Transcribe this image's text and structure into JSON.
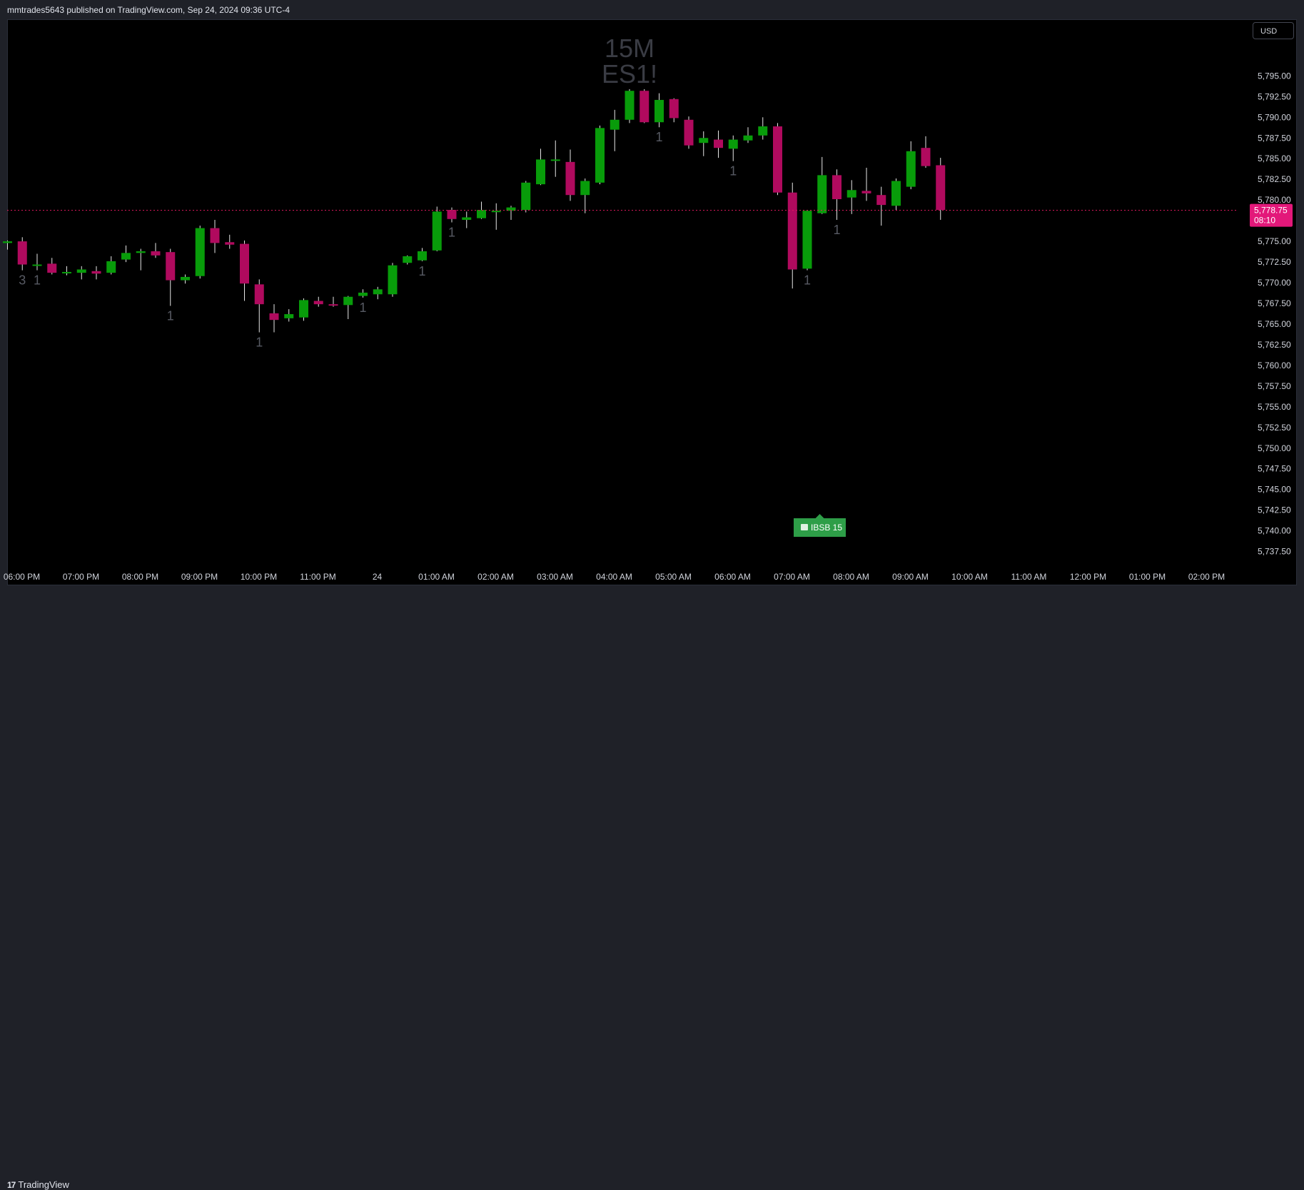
{
  "header": {
    "publisher": "mmtrades5643 published on TradingView.com, Sep 24, 2024 09:36 UTC-4"
  },
  "currency_button": "USD",
  "footer": {
    "brand": "TradingView",
    "brand_logo": "17"
  },
  "watermark": {
    "line1": "15M",
    "line2": "ES1!"
  },
  "colors": {
    "background": "#000000",
    "up": "#089c0a",
    "down": "#b00a5e",
    "wick": "#e6e6e6",
    "price_line": "#e3185f",
    "price_tag": "#e3187a",
    "count_label": "#575a63",
    "ibsb_badge": "#2e9e48"
  },
  "current_price": {
    "price": "5,778.75",
    "countdown": "08:10"
  },
  "ibsb_label": "IBSB 15",
  "chart_data": {
    "type": "candlestick",
    "symbol": "ES1!",
    "interval": "15M",
    "ylim": [
      5736.0,
      5799.0
    ],
    "y_ticks": [
      "5,795.00",
      "5,792.50",
      "5,790.00",
      "5,787.50",
      "5,785.00",
      "5,782.50",
      "5,780.00",
      "5,777.50",
      "5,775.00",
      "5,772.50",
      "5,770.00",
      "5,767.50",
      "5,765.00",
      "5,762.50",
      "5,760.00",
      "5,757.50",
      "5,755.00",
      "5,752.50",
      "5,750.00",
      "5,747.50",
      "5,745.00",
      "5,742.50",
      "5,740.00",
      "5,737.50"
    ],
    "x_ticks": [
      "06:00 PM",
      "07:00 PM",
      "08:00 PM",
      "09:00 PM",
      "10:00 PM",
      "11:00 PM",
      "24",
      "01:00 AM",
      "02:00 AM",
      "03:00 AM",
      "04:00 AM",
      "05:00 AM",
      "06:00 AM",
      "07:00 AM",
      "08:00 AM",
      "09:00 AM",
      "10:00 AM",
      "11:00 AM",
      "12:00 PM",
      "01:00 PM",
      "02:00 PM"
    ],
    "current_price": 5778.75,
    "candles": [
      {
        "t": "18:00",
        "o": 5774.8,
        "h": 5775.1,
        "l": 5774.0,
        "c": 5775.0
      },
      {
        "t": "18:15",
        "o": 5775.0,
        "h": 5775.5,
        "l": 5771.5,
        "c": 5772.2
      },
      {
        "t": "18:30",
        "o": 5772.2,
        "h": 5773.5,
        "l": 5771.5,
        "c": 5772.2
      },
      {
        "t": "18:45",
        "o": 5772.3,
        "h": 5773.0,
        "l": 5771.0,
        "c": 5771.2
      },
      {
        "t": "19:00",
        "o": 5771.2,
        "h": 5772.0,
        "l": 5770.9,
        "c": 5771.3
      },
      {
        "t": "19:15",
        "o": 5771.2,
        "h": 5772.0,
        "l": 5770.4,
        "c": 5771.6
      },
      {
        "t": "19:30",
        "o": 5771.4,
        "h": 5772.0,
        "l": 5770.4,
        "c": 5771.1
      },
      {
        "t": "19:45",
        "o": 5771.2,
        "h": 5773.2,
        "l": 5771.0,
        "c": 5772.6
      },
      {
        "t": "20:00",
        "o": 5772.8,
        "h": 5774.5,
        "l": 5772.5,
        "c": 5773.6
      },
      {
        "t": "20:15",
        "o": 5773.6,
        "h": 5774.1,
        "l": 5771.5,
        "c": 5773.8
      },
      {
        "t": "20:30",
        "o": 5773.8,
        "h": 5774.8,
        "l": 5773.0,
        "c": 5773.3
      },
      {
        "t": "20:45",
        "o": 5773.7,
        "h": 5774.1,
        "l": 5767.2,
        "c": 5770.3
      },
      {
        "t": "21:00",
        "o": 5770.3,
        "h": 5771.0,
        "l": 5769.9,
        "c": 5770.7
      },
      {
        "t": "21:15",
        "o": 5770.8,
        "h": 5776.9,
        "l": 5770.5,
        "c": 5776.6
      },
      {
        "t": "21:30",
        "o": 5776.6,
        "h": 5777.6,
        "l": 5773.6,
        "c": 5774.8
      },
      {
        "t": "21:45",
        "o": 5774.9,
        "h": 5775.8,
        "l": 5774.1,
        "c": 5774.6
      },
      {
        "t": "22:00",
        "o": 5774.7,
        "h": 5775.1,
        "l": 5767.8,
        "c": 5769.9
      },
      {
        "t": "22:15",
        "o": 5769.8,
        "h": 5770.4,
        "l": 5764.0,
        "c": 5767.4
      },
      {
        "t": "22:30",
        "o": 5766.3,
        "h": 5767.4,
        "l": 5764.0,
        "c": 5765.5
      },
      {
        "t": "22:45",
        "o": 5765.7,
        "h": 5766.8,
        "l": 5765.3,
        "c": 5766.2
      },
      {
        "t": "23:00",
        "o": 5765.8,
        "h": 5768.1,
        "l": 5765.4,
        "c": 5767.9
      },
      {
        "t": "23:15",
        "o": 5767.8,
        "h": 5768.3,
        "l": 5767.1,
        "c": 5767.4
      },
      {
        "t": "23:30",
        "o": 5767.4,
        "h": 5768.3,
        "l": 5767.1,
        "c": 5767.3
      },
      {
        "t": "23:45",
        "o": 5767.3,
        "h": 5768.4,
        "l": 5765.6,
        "c": 5768.3
      },
      {
        "t": "00:00",
        "o": 5768.4,
        "h": 5769.2,
        "l": 5768.2,
        "c": 5768.8
      },
      {
        "t": "00:15",
        "o": 5768.6,
        "h": 5769.5,
        "l": 5768.0,
        "c": 5769.2
      },
      {
        "t": "00:30",
        "o": 5768.6,
        "h": 5772.4,
        "l": 5768.3,
        "c": 5772.1
      },
      {
        "t": "00:45",
        "o": 5772.4,
        "h": 5773.3,
        "l": 5772.2,
        "c": 5773.2
      },
      {
        "t": "01:00",
        "o": 5772.7,
        "h": 5774.2,
        "l": 5772.6,
        "c": 5773.8
      },
      {
        "t": "01:15",
        "o": 5773.9,
        "h": 5779.2,
        "l": 5773.8,
        "c": 5778.6
      },
      {
        "t": "01:30",
        "o": 5778.8,
        "h": 5779.1,
        "l": 5777.3,
        "c": 5777.7
      },
      {
        "t": "01:45",
        "o": 5777.6,
        "h": 5778.6,
        "l": 5776.6,
        "c": 5777.9
      },
      {
        "t": "02:00",
        "o": 5777.8,
        "h": 5779.8,
        "l": 5777.7,
        "c": 5778.8
      },
      {
        "t": "02:15",
        "o": 5778.6,
        "h": 5779.6,
        "l": 5776.4,
        "c": 5778.7
      },
      {
        "t": "02:30",
        "o": 5778.7,
        "h": 5779.3,
        "l": 5777.6,
        "c": 5779.1
      },
      {
        "t": "02:45",
        "o": 5778.8,
        "h": 5782.3,
        "l": 5778.5,
        "c": 5782.1
      },
      {
        "t": "03:00",
        "o": 5781.9,
        "h": 5786.2,
        "l": 5781.8,
        "c": 5784.9
      },
      {
        "t": "03:15",
        "o": 5784.9,
        "h": 5787.2,
        "l": 5782.8,
        "c": 5784.9
      },
      {
        "t": "03:30",
        "o": 5784.6,
        "h": 5786.1,
        "l": 5779.9,
        "c": 5780.6
      },
      {
        "t": "03:45",
        "o": 5780.6,
        "h": 5782.6,
        "l": 5778.4,
        "c": 5782.3
      },
      {
        "t": "04:00",
        "o": 5782.1,
        "h": 5789.0,
        "l": 5781.9,
        "c": 5788.7
      },
      {
        "t": "04:15",
        "o": 5788.5,
        "h": 5790.9,
        "l": 5785.9,
        "c": 5789.7
      },
      {
        "t": "04:30",
        "o": 5789.7,
        "h": 5793.4,
        "l": 5789.3,
        "c": 5793.2
      },
      {
        "t": "04:45",
        "o": 5793.2,
        "h": 5793.4,
        "l": 5789.3,
        "c": 5789.4
      },
      {
        "t": "05:00",
        "o": 5789.4,
        "h": 5792.9,
        "l": 5788.8,
        "c": 5792.1
      },
      {
        "t": "05:15",
        "o": 5792.2,
        "h": 5792.3,
        "l": 5789.4,
        "c": 5789.9
      },
      {
        "t": "05:30",
        "o": 5789.7,
        "h": 5790.1,
        "l": 5786.2,
        "c": 5786.6
      },
      {
        "t": "05:45",
        "o": 5786.9,
        "h": 5788.3,
        "l": 5785.3,
        "c": 5787.5
      },
      {
        "t": "06:00",
        "o": 5787.3,
        "h": 5788.4,
        "l": 5785.1,
        "c": 5786.3
      },
      {
        "t": "06:15",
        "o": 5786.2,
        "h": 5787.8,
        "l": 5784.7,
        "c": 5787.3
      },
      {
        "t": "06:30",
        "o": 5787.2,
        "h": 5788.8,
        "l": 5786.9,
        "c": 5787.8
      },
      {
        "t": "06:45",
        "o": 5787.8,
        "h": 5790.0,
        "l": 5787.3,
        "c": 5788.9
      },
      {
        "t": "07:00",
        "o": 5788.9,
        "h": 5789.3,
        "l": 5780.6,
        "c": 5780.9
      },
      {
        "t": "07:15",
        "o": 5780.9,
        "h": 5782.1,
        "l": 5769.3,
        "c": 5771.6
      },
      {
        "t": "07:30",
        "o": 5771.7,
        "h": 5778.7,
        "l": 5771.5,
        "c": 5778.7
      },
      {
        "t": "07:45",
        "o": 5778.4,
        "h": 5785.2,
        "l": 5778.3,
        "c": 5783.0
      },
      {
        "t": "08:00",
        "o": 5783.0,
        "h": 5783.7,
        "l": 5777.6,
        "c": 5780.1
      },
      {
        "t": "08:15",
        "o": 5780.3,
        "h": 5782.4,
        "l": 5778.3,
        "c": 5781.2
      },
      {
        "t": "08:30",
        "o": 5781.1,
        "h": 5783.9,
        "l": 5779.9,
        "c": 5780.8
      },
      {
        "t": "08:45",
        "o": 5780.6,
        "h": 5781.6,
        "l": 5776.9,
        "c": 5779.4
      },
      {
        "t": "09:00",
        "o": 5779.3,
        "h": 5782.6,
        "l": 5778.8,
        "c": 5782.3
      },
      {
        "t": "09:15",
        "o": 5781.6,
        "h": 5787.1,
        "l": 5781.3,
        "c": 5785.9
      },
      {
        "t": "09:30",
        "o": 5786.3,
        "h": 5787.7,
        "l": 5783.9,
        "c": 5784.1
      },
      {
        "t": "09:45",
        "o": 5784.2,
        "h": 5785.1,
        "l": 5777.6,
        "c": 5778.8
      }
    ],
    "count_labels": [
      {
        "candle": 1,
        "text": "3"
      },
      {
        "candle": 2,
        "text": "1"
      },
      {
        "candle": 11,
        "text": "1"
      },
      {
        "candle": 17,
        "text": "1"
      },
      {
        "candle": 24,
        "text": "1"
      },
      {
        "candle": 28,
        "text": "1"
      },
      {
        "candle": 30,
        "text": "1"
      },
      {
        "candle": 44,
        "text": "1"
      },
      {
        "candle": 49,
        "text": "1"
      },
      {
        "candle": 54,
        "text": "1"
      },
      {
        "candle": 56,
        "text": "1"
      }
    ]
  }
}
